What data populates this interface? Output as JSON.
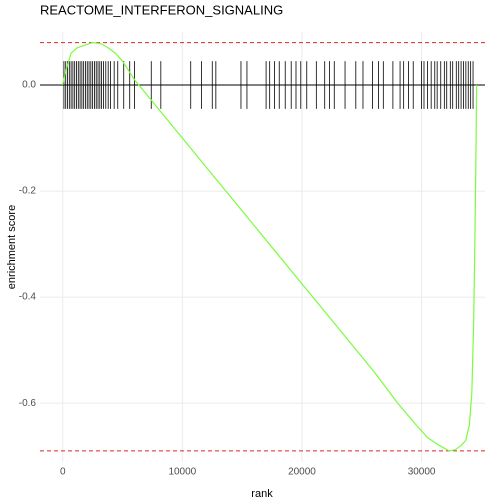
{
  "chart_data": {
    "type": "line",
    "title": "REACTOME_INTERFERON_SIGNALING",
    "x_label": "rank",
    "y_label": "enrichment score",
    "xlim": [
      -1900,
      35300
    ],
    "ylim": [
      -0.711,
      0.1
    ],
    "xticks": [
      0,
      10000,
      20000,
      30000
    ],
    "yticks": [
      -0.6,
      -0.4,
      -0.2,
      {
        "value": 0,
        "label": "0.0"
      }
    ],
    "grid": true,
    "series": [
      {
        "name": "enrichment score",
        "color": "#7cfc3c",
        "x": [
          0,
          300,
          700,
          1200,
          1800,
          2500,
          3200,
          3800,
          4400,
          5000,
          6000,
          8000,
          10000,
          12000,
          14000,
          16000,
          18000,
          20000,
          22000,
          24000,
          26000,
          28000,
          29500,
          30500,
          31500,
          32300,
          32800,
          33300,
          33700,
          34000,
          34200,
          34350,
          34450,
          34550,
          34600
        ],
        "values": [
          0,
          0.03,
          0.06,
          0.07,
          0.075,
          0.08,
          0.078,
          0.07,
          0.06,
          0.045,
          0.01,
          -0.045,
          -0.1,
          -0.155,
          -0.21,
          -0.265,
          -0.32,
          -0.375,
          -0.43,
          -0.485,
          -0.54,
          -0.6,
          -0.64,
          -0.665,
          -0.68,
          -0.69,
          -0.688,
          -0.68,
          -0.67,
          -0.64,
          -0.58,
          -0.45,
          -0.3,
          -0.12,
          0.0
        ]
      }
    ],
    "hits": [
      100,
      250,
      400,
      550,
      700,
      850,
      1000,
      1150,
      1300,
      1450,
      1600,
      1750,
      1900,
      2050,
      2200,
      2350,
      2500,
      2650,
      2800,
      2950,
      3100,
      3250,
      3400,
      3600,
      3800,
      4000,
      4300,
      4600,
      5100,
      5600,
      6000,
      7400,
      8200,
      10700,
      11600,
      12500,
      12800,
      14900,
      15400,
      17000,
      17300,
      17700,
      18100,
      18600,
      19100,
      19500,
      19900,
      20400,
      21200,
      21900,
      22300,
      22700,
      23600,
      24500,
      25100,
      25900,
      26400,
      26800,
      27600,
      28200,
      28500,
      28900,
      29300,
      30000,
      30200,
      30500,
      30800,
      31100,
      31300,
      31600,
      31900,
      32100,
      32400,
      32600,
      32900,
      33100,
      33300,
      33500,
      33700,
      33900,
      34100,
      34300
    ],
    "hit_color": "#000000",
    "hit_range": [
      -0.045,
      0.045
    ],
    "reference_lines": [
      {
        "value": 0.08,
        "color": "#d62728",
        "dashed": true
      },
      {
        "value": -0.69,
        "color": "#d62728",
        "dashed": true
      },
      {
        "value": 0,
        "color": "#000000",
        "dashed": false
      }
    ]
  }
}
